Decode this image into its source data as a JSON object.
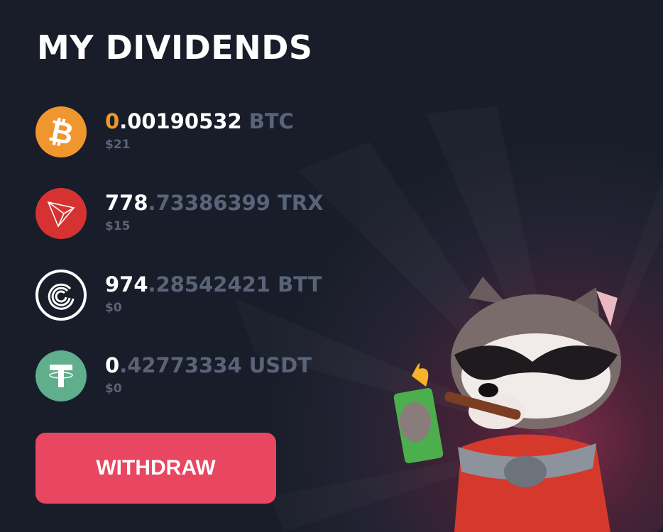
{
  "title": "MY DIVIDENDS",
  "coins": [
    {
      "symbol": "BTC",
      "int": "0",
      "frac": ".00190532",
      "unit": "BTC",
      "usd": "$21",
      "color": "#f0962e",
      "icon": "bitcoin-icon"
    },
    {
      "symbol": "TRX",
      "int": "778",
      "frac": ".73386399",
      "unit": "TRX",
      "usd": "$15",
      "color": "#d63232",
      "icon": "tron-icon"
    },
    {
      "symbol": "BTT",
      "int": "974",
      "frac": ".28542421",
      "unit": "BTT",
      "usd": "$0",
      "color": "#181d29",
      "icon": "bittorrent-icon"
    },
    {
      "symbol": "USDT",
      "int": "0",
      "frac": ".42773334",
      "unit": "USDT",
      "usd": "$0",
      "color": "#5fae8c",
      "icon": "tether-icon"
    }
  ],
  "withdraw_label": "WITHDRAW",
  "accent": "#e84661"
}
